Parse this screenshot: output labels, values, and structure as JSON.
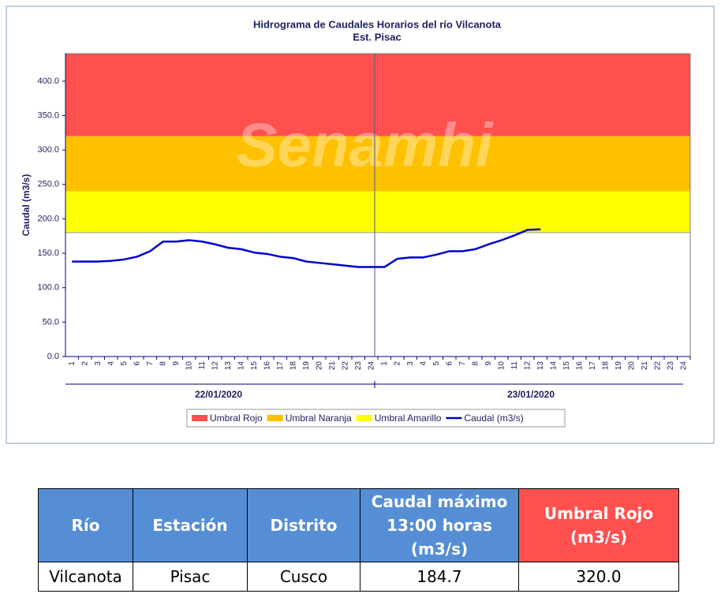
{
  "chart_data": {
    "type": "line",
    "title": "Hidrograma de Caudales Horarios del río Vilcanota",
    "subtitle": "Est. Pisac",
    "watermark": "Senamhi",
    "y_label": "Caudal (m3/s)",
    "categories": [
      "1",
      "2",
      "3",
      "4",
      "5",
      "6",
      "7",
      "8",
      "9",
      "10",
      "11",
      "12",
      "13",
      "14",
      "15",
      "16",
      "17",
      "18",
      "19",
      "20",
      "21",
      "22",
      "23",
      "24",
      "1",
      "2",
      "3",
      "4",
      "5",
      "6",
      "7",
      "8",
      "9",
      "10",
      "11",
      "12",
      "13",
      "14",
      "15",
      "16",
      "17",
      "18",
      "19",
      "20",
      "21",
      "22",
      "23",
      "24"
    ],
    "day_labels": [
      "22/01/2020",
      "23/01/2020"
    ],
    "thresholds": [
      {
        "name": "Umbral Rojo",
        "color": "#ff5050",
        "value": 320
      },
      {
        "name": "Umbral Naranja",
        "color": "#ffc000",
        "value": 240
      },
      {
        "name": "Umbral Amarillo",
        "color": "#ffff00",
        "value": 180
      }
    ],
    "series": [
      {
        "name": "Caudal (m3/s)",
        "color": "#0000cc",
        "values": [
          138,
          138,
          138,
          139,
          141,
          145,
          153,
          167,
          167,
          169,
          167,
          163,
          158,
          156,
          151,
          149,
          145,
          143,
          138,
          136,
          134,
          132,
          130,
          130,
          130,
          142,
          144,
          144,
          148,
          153,
          153,
          156,
          163,
          169,
          176,
          184,
          184.7,
          null,
          null,
          null,
          null,
          null,
          null,
          null,
          null,
          null,
          null,
          null
        ]
      }
    ],
    "ylim": [
      0,
      440
    ],
    "yticks": [
      {
        "value": 0,
        "label": "0.0"
      },
      {
        "value": 50,
        "label": "50.0"
      },
      {
        "value": 100,
        "label": "100.0"
      },
      {
        "value": 150,
        "label": "150.0"
      },
      {
        "value": 200,
        "label": "200.0"
      },
      {
        "value": 250,
        "label": "250.0"
      },
      {
        "value": 300,
        "label": "300.0"
      },
      {
        "value": 350,
        "label": "350.0"
      },
      {
        "value": 400,
        "label": "400.0"
      }
    ]
  },
  "table": {
    "header": [
      "Río",
      "Estación",
      "Distrito",
      "Caudal máximo 13:00 horas (m3/s)",
      "Umbral Rojo (m3/s)"
    ],
    "rows": [
      [
        "Vilcanota",
        "Pisac",
        "Cusco",
        "184.7",
        "320.0"
      ]
    ]
  }
}
